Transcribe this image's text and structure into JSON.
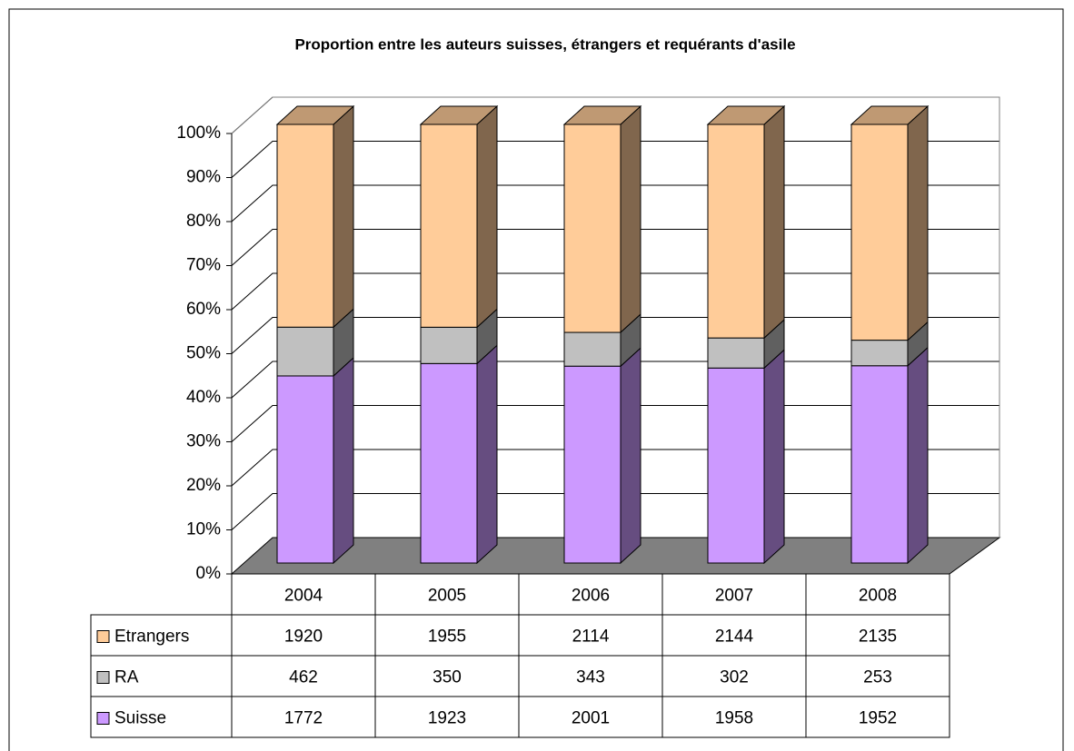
{
  "chart_data": {
    "type": "stacked-bar-100",
    "title": "Proportion entre les auteurs suisses, étrangers et requérants d'asile",
    "categories": [
      "2004",
      "2005",
      "2006",
      "2007",
      "2008"
    ],
    "series": [
      {
        "name": "Etrangers",
        "color": "#ffcc99",
        "values": [
          1920,
          1955,
          2114,
          2144,
          2135
        ]
      },
      {
        "name": "RA",
        "color": "#c0c0c0",
        "values": [
          462,
          350,
          343,
          302,
          253
        ]
      },
      {
        "name": "Suisse",
        "color": "#cc99ff",
        "values": [
          1772,
          1923,
          2001,
          1958,
          1952
        ]
      }
    ],
    "ylim": [
      0,
      100
    ],
    "yticks": [
      {
        "value": 0,
        "label": "0%"
      },
      {
        "value": 10,
        "label": "10%"
      },
      {
        "value": 20,
        "label": "20%"
      },
      {
        "value": 30,
        "label": "30%"
      },
      {
        "value": 40,
        "label": "40%"
      },
      {
        "value": 50,
        "label": "50%"
      },
      {
        "value": 60,
        "label": "60%"
      },
      {
        "value": 70,
        "label": "70%"
      },
      {
        "value": 80,
        "label": "80%"
      },
      {
        "value": 90,
        "label": "90%"
      },
      {
        "value": 100,
        "label": "100%"
      }
    ],
    "grid": true
  }
}
